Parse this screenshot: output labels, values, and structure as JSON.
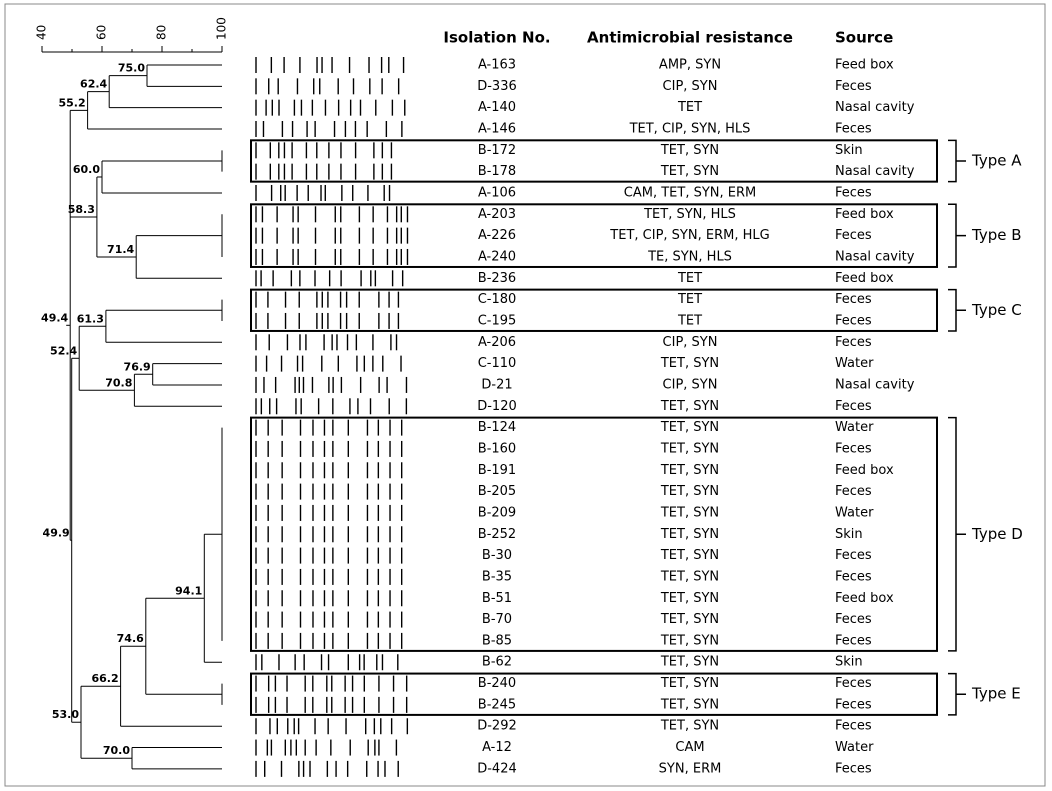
{
  "axis": {
    "ticks": [
      40,
      60,
      80,
      100
    ]
  },
  "header": {
    "isolation": "Isolation No.",
    "resistance": "Antimicrobial resistance",
    "source": "Source"
  },
  "rows": [
    [
      "A-163",
      "AMP, SYN",
      "Feed box"
    ],
    [
      "D-336",
      "CIP, SYN",
      "Feces"
    ],
    [
      "A-140",
      "TET",
      "Nasal cavity"
    ],
    [
      "A-146",
      "TET, CIP, SYN, HLS",
      "Feces"
    ],
    [
      "B-172",
      "TET, SYN",
      "Skin"
    ],
    [
      "B-178",
      "TET, SYN",
      "Nasal cavity"
    ],
    [
      "A-106",
      "CAM, TET, SYN, ERM",
      "Feces"
    ],
    [
      "A-203",
      "TET, SYN, HLS",
      "Feed box"
    ],
    [
      "A-226",
      "TET, CIP, SYN, ERM, HLG",
      "Feces"
    ],
    [
      "A-240",
      "TE, SYN, HLS",
      "Nasal cavity"
    ],
    [
      "B-236",
      "TET",
      "Feed box"
    ],
    [
      "C-180",
      "TET",
      "Feces"
    ],
    [
      "C-195",
      "TET",
      "Feces"
    ],
    [
      "A-206",
      "CIP, SYN",
      "Feces"
    ],
    [
      "C-110",
      "TET, SYN",
      "Water"
    ],
    [
      "D-21",
      "CIP, SYN",
      "Nasal cavity"
    ],
    [
      "D-120",
      "TET, SYN",
      "Feces"
    ],
    [
      "B-124",
      "TET, SYN",
      "Water"
    ],
    [
      "B-160",
      "TET, SYN",
      "Feces"
    ],
    [
      "B-191",
      "TET, SYN",
      "Feed box"
    ],
    [
      "B-205",
      "TET, SYN",
      "Feces"
    ],
    [
      "B-209",
      "TET, SYN",
      "Water"
    ],
    [
      "B-252",
      "TET, SYN",
      "Skin"
    ],
    [
      "B-30",
      "TET, SYN",
      "Feces"
    ],
    [
      "B-35",
      "TET, SYN",
      "Feces"
    ],
    [
      "B-51",
      "TET, SYN",
      "Feed box"
    ],
    [
      "B-70",
      "TET, SYN",
      "Feces"
    ],
    [
      "B-85",
      "TET, SYN",
      "Feces"
    ],
    [
      "B-62",
      "TET, SYN",
      "Skin"
    ],
    [
      "B-240",
      "TET, SYN",
      "Feces"
    ],
    [
      "B-245",
      "TET, SYN",
      "Feces"
    ],
    [
      "D-292",
      "TET, SYN",
      "Feces"
    ],
    [
      "A-12",
      "CAM",
      "Water"
    ],
    [
      "D-424",
      "SYN, ERM",
      "Feces"
    ]
  ],
  "types": [
    {
      "label": "Type A",
      "rows": [
        4,
        5
      ]
    },
    {
      "label": "Type B",
      "rows": [
        7,
        9
      ]
    },
    {
      "label": "Type C",
      "rows": [
        11,
        12
      ]
    },
    {
      "label": "Type D",
      "rows": [
        17,
        27
      ]
    },
    {
      "label": "Type E",
      "rows": [
        29,
        30
      ]
    }
  ],
  "tree": {
    "label": "49.4",
    "value": 49.4,
    "children": [
      {
        "label": "55.2",
        "value": 55.2,
        "children": [
          {
            "label": "62.4",
            "value": 62.4,
            "children": [
              {
                "label": "75.0",
                "value": 75,
                "children": [
                  0,
                  1
                ]
              },
              2
            ]
          },
          3
        ]
      },
      {
        "label": "58.3",
        "value": 58.3,
        "children": [
          {
            "label": "60.0",
            "value": 60,
            "children": [
              {
                "children": [
                  4,
                  5
                ]
              },
              6
            ]
          },
          {
            "label": "71.4",
            "value": 71.4,
            "children": [
              {
                "children": [
                  7,
                  8,
                  9
                ]
              },
              10
            ]
          }
        ]
      },
      {
        "label": "49.9",
        "value": 49.9,
        "children": [
          {
            "label": "52.4",
            "value": 52.4,
            "children": [
              {
                "label": "61.3",
                "value": 61.3,
                "children": [
                  {
                    "children": [
                      11,
                      12
                    ]
                  },
                  13
                ]
              },
              {
                "label": "70.8",
                "value": 70.8,
                "children": [
                  {
                    "label": "76.9",
                    "value": 76.9,
                    "children": [
                      14,
                      15
                    ]
                  },
                  16
                ]
              }
            ]
          },
          {
            "label": "53.0",
            "value": 53,
            "children": [
              {
                "label": "66.2",
                "value": 66.2,
                "children": [
                  {
                    "label": "74.6",
                    "value": 74.6,
                    "children": [
                      {
                        "label": "94.1",
                        "value": 94.1,
                        "children": [
                          {
                            "children": [
                              17,
                              18,
                              19,
                              20,
                              21,
                              22,
                              23,
                              24,
                              25,
                              26,
                              27
                            ]
                          },
                          28
                        ]
                      },
                      {
                        "children": [
                          29,
                          30
                        ]
                      }
                    ]
                  },
                  31
                ]
              },
              {
                "label": "70.0",
                "value": 70,
                "children": [
                  32,
                  33
                ]
              }
            ]
          }
        ]
      }
    ]
  }
}
